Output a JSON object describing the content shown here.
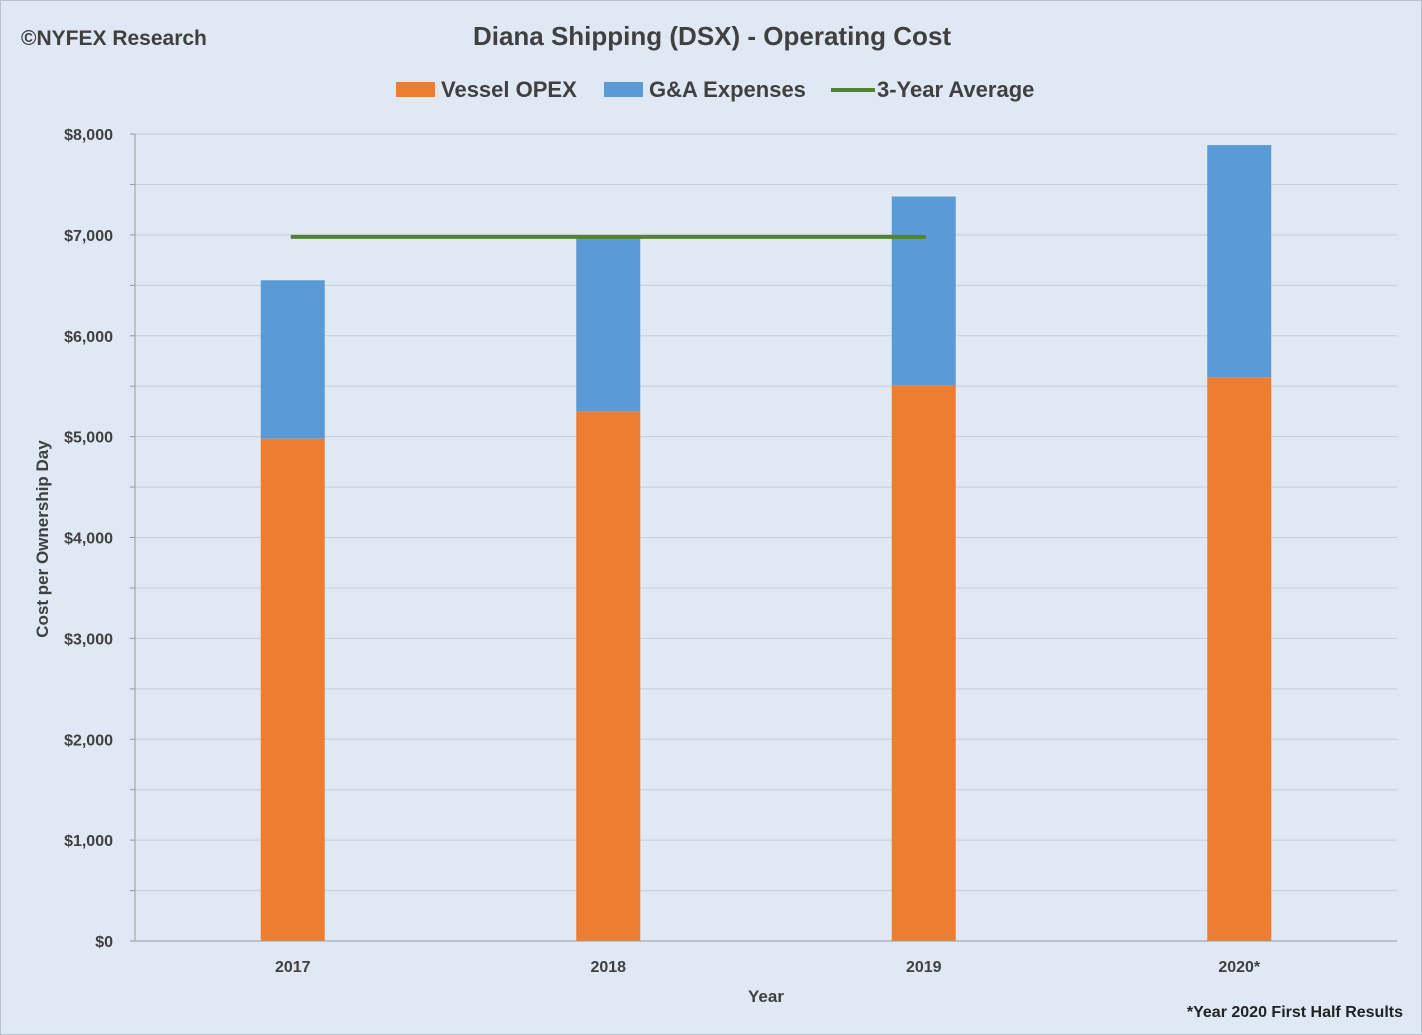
{
  "header": {
    "copyright": "©NYFEX Research",
    "footnote": "*Year 2020 First Half Results"
  },
  "colors": {
    "vessel_opex": "#ed7d31",
    "ga_expenses": "#5b9bd5",
    "three_year_average": "#548235",
    "gridline": "#c8ced6",
    "axis": "#9a9a9a"
  },
  "chart_data": {
    "type": "bar",
    "stacked": true,
    "title": "Diana Shipping (DSX) - Operating Cost",
    "xlabel": "Year",
    "ylabel": "Cost per Ownership Day",
    "categories": [
      "2017",
      "2018",
      "2019",
      "2020*"
    ],
    "series": [
      {
        "name": "Vessel OPEX",
        "values": [
          4980,
          5250,
          5510,
          5590
        ]
      },
      {
        "name": "G&A Expenses",
        "values": [
          1570,
          1730,
          1870,
          2300
        ]
      }
    ],
    "lines": [
      {
        "name": "3-Year Average",
        "y": 6980,
        "from": "2017",
        "to": "2019"
      }
    ],
    "ylim": [
      0,
      8000
    ],
    "yticks": [
      0,
      1000,
      2000,
      3000,
      4000,
      5000,
      6000,
      7000,
      8000
    ],
    "ytick_labels": [
      "$0",
      "$1,000",
      "$2,000",
      "$3,000",
      "$4,000",
      "$5,000",
      "$6,000",
      "$7,000",
      "$8,000"
    ],
    "grid": true,
    "legend_position": "top-center"
  }
}
